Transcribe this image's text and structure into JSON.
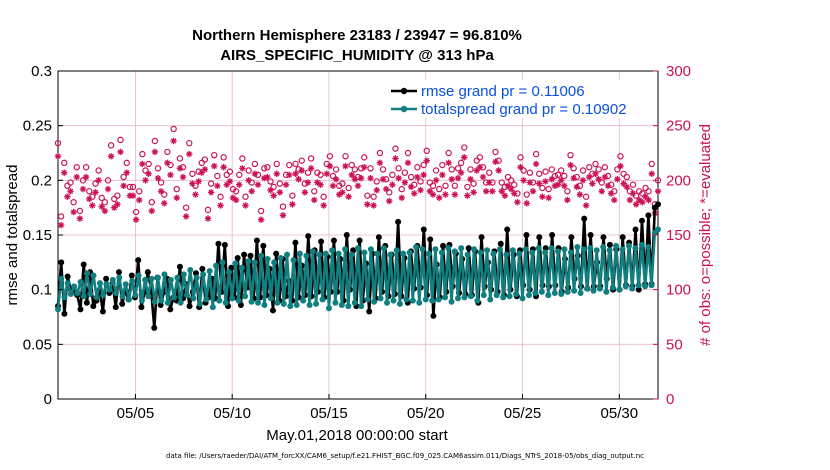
{
  "chart_data": {
    "type": "line",
    "title": "Northern Hemisphere 23183 / 23947 = 96.810%",
    "subtitle": "AIRS_SPECIFIC_HUMIDITY @ 313 hPa",
    "xlabel": "May.01,2018 00:00:00 start",
    "ylabel_left": "rmse and totalspread",
    "ylabel_right": "# of obs: o=possible; *=evaluated",
    "x_ticks": [
      {
        "day": 5,
        "label": "05/05"
      },
      {
        "day": 10,
        "label": "05/10"
      },
      {
        "day": 15,
        "label": "05/15"
      },
      {
        "day": 20,
        "label": "05/20"
      },
      {
        "day": 25,
        "label": "05/25"
      },
      {
        "day": 30,
        "label": "05/30"
      }
    ],
    "xlim": [
      1.0,
      32.0
    ],
    "ylim_left": [
      0,
      0.3
    ],
    "ylim_right": [
      0,
      300
    ],
    "left_ticks": [
      "0",
      "0.05",
      "0.1",
      "0.15",
      "0.2",
      "0.25",
      "0.3"
    ],
    "right_ticks": [
      "0",
      "50",
      "100",
      "150",
      "200",
      "250",
      "300"
    ],
    "grid": true,
    "legend_position": "top-right",
    "footnote": "data file: /Users/raeder/DAI/ATM_forcXX/CAM6_setup/f.e21.FHIST_BGC.f09_025.CAM6assim.011/Diags_NTrS_2018-05/obs_diag_output.nc",
    "colors": {
      "rmse": "#000000",
      "spread": "#0f7f7f",
      "obs": "#cc1155",
      "legend_text": "#0a50e0"
    },
    "series": [
      {
        "name": "rmse grand pr = 0.11006",
        "axis": "left",
        "marker": "circle",
        "values": [
          0.085,
          0.125,
          0.078,
          0.112,
          0.1,
          0.098,
          0.095,
          0.082,
          0.123,
          0.088,
          0.116,
          0.085,
          0.09,
          0.1,
          0.08,
          0.11,
          0.097,
          0.106,
          0.084,
          0.116,
          0.087,
          0.099,
          0.091,
          0.113,
          0.093,
          0.127,
          0.084,
          0.098,
          0.116,
          0.101,
          0.065,
          0.111,
          0.086,
          0.098,
          0.11,
          0.082,
          0.093,
          0.09,
          0.121,
          0.092,
          0.105,
          0.085,
          0.098,
          0.115,
          0.084,
          0.119,
          0.088,
          0.093,
          0.11,
          0.092,
          0.142,
          0.098,
          0.141,
          0.085,
          0.12,
          0.093,
          0.129,
          0.086,
          0.132,
          0.102,
          0.131,
          0.092,
          0.145,
          0.093,
          0.14,
          0.095,
          0.119,
          0.081,
          0.133,
          0.09,
          0.128,
          0.094,
          0.108,
          0.09,
          0.143,
          0.093,
          0.122,
          0.095,
          0.149,
          0.094,
          0.136,
          0.098,
          0.144,
          0.093,
          0.13,
          0.098,
          0.145,
          0.098,
          0.128,
          0.09,
          0.15,
          0.1,
          0.136,
          0.085,
          0.145,
          0.09,
          0.124,
          0.08,
          0.133,
          0.092,
          0.148,
          0.098,
          0.14,
          0.094,
          0.132,
          0.096,
          0.162,
          0.094,
          0.129,
          0.088,
          0.135,
          0.101,
          0.14,
          0.102,
          0.155,
          0.095,
          0.146,
          0.076,
          0.123,
          0.093,
          0.14,
          0.098,
          0.141,
          0.103,
          0.133,
          0.097,
          0.128,
          0.096,
          0.138,
          0.095,
          0.135,
          0.088,
          0.148,
          0.103,
          0.125,
          0.1,
          0.135,
          0.098,
          0.142,
          0.095,
          0.155,
          0.1,
          0.132,
          0.094,
          0.136,
          0.104,
          0.15,
          0.1,
          0.137,
          0.094,
          0.148,
          0.104,
          0.138,
          0.103,
          0.15,
          0.104,
          0.138,
          0.098,
          0.128,
          0.102,
          0.148,
          0.11,
          0.131,
          0.103,
          0.165,
          0.101,
          0.15,
          0.103,
          0.125,
          0.103,
          0.148,
          0.11,
          0.141,
          0.1,
          0.137,
          0.1,
          0.148,
          0.104,
          0.143,
          0.103,
          0.155,
          0.1,
          0.163,
          0.105,
          0.168,
          0.105,
          0.175,
          0.178
        ]
      },
      {
        "name": "totalspread grand pr = 0.10902",
        "axis": "left",
        "marker": "circle",
        "values": [
          0.082,
          0.11,
          0.093,
          0.106,
          0.096,
          0.103,
          0.097,
          0.107,
          0.094,
          0.115,
          0.096,
          0.113,
          0.093,
          0.106,
          0.095,
          0.105,
          0.1,
          0.109,
          0.097,
          0.111,
          0.094,
          0.105,
          0.091,
          0.108,
          0.095,
          0.113,
          0.09,
          0.109,
          0.094,
          0.11,
          0.089,
          0.111,
          0.09,
          0.114,
          0.088,
          0.109,
          0.093,
          0.111,
          0.088,
          0.114,
          0.095,
          0.118,
          0.092,
          0.111,
          0.087,
          0.114,
          0.091,
          0.117,
          0.084,
          0.122,
          0.09,
          0.125,
          0.088,
          0.116,
          0.092,
          0.124,
          0.09,
          0.12,
          0.094,
          0.126,
          0.089,
          0.125,
          0.088,
          0.131,
          0.086,
          0.128,
          0.092,
          0.125,
          0.088,
          0.129,
          0.087,
          0.132,
          0.085,
          0.127,
          0.086,
          0.133,
          0.09,
          0.131,
          0.086,
          0.135,
          0.087,
          0.132,
          0.091,
          0.133,
          0.083,
          0.136,
          0.088,
          0.133,
          0.086,
          0.137,
          0.085,
          0.132,
          0.088,
          0.138,
          0.085,
          0.134,
          0.091,
          0.137,
          0.089,
          0.133,
          0.092,
          0.138,
          0.088,
          0.132,
          0.09,
          0.136,
          0.087,
          0.133,
          0.091,
          0.134,
          0.09,
          0.139,
          0.088,
          0.137,
          0.091,
          0.133,
          0.09,
          0.137,
          0.091,
          0.134,
          0.093,
          0.138,
          0.089,
          0.135,
          0.092,
          0.138,
          0.093,
          0.132,
          0.094,
          0.137,
          0.09,
          0.134,
          0.095,
          0.136,
          0.091,
          0.133,
          0.095,
          0.137,
          0.093,
          0.132,
          0.094,
          0.136,
          0.096,
          0.133,
          0.092,
          0.137,
          0.095,
          0.134,
          0.097,
          0.138,
          0.098,
          0.134,
          0.095,
          0.138,
          0.097,
          0.135,
          0.096,
          0.137,
          0.098,
          0.134,
          0.099,
          0.139,
          0.097,
          0.137,
          0.101,
          0.138,
          0.099,
          0.136,
          0.101,
          0.139,
          0.098,
          0.136,
          0.102,
          0.14,
          0.1,
          0.137,
          0.103,
          0.14,
          0.101,
          0.138,
          0.104,
          0.141,
          0.103,
          0.139,
          0.104,
          0.152,
          0.155
        ]
      },
      {
        "name": "possible",
        "axis": "right",
        "marker": "o",
        "values": [
          234,
          167,
          216,
          195,
          198,
          180,
          212,
          172,
          200,
          212,
          190,
          185,
          197,
          209,
          184,
          180,
          200,
          232,
          183,
          186,
          237,
          203,
          216,
          194,
          194,
          171,
          190,
          224,
          209,
          215,
          180,
          236,
          211,
          198,
          187,
          226,
          214,
          247,
          192,
          220,
          212,
          175,
          234,
          206,
          195,
          208,
          216,
          219,
          173,
          197,
          223,
          204,
          185,
          221,
          205,
          208,
          192,
          190,
          205,
          220,
          185,
          209,
          198,
          215,
          205,
          172,
          211,
          212,
          199,
          194,
          215,
          197,
          176,
          205,
          214,
          186,
          215,
          210,
          218,
          197,
          207,
          220,
          190,
          207,
          205,
          185,
          215,
          222,
          204,
          210,
          195,
          197,
          222,
          193,
          214,
          210,
          203,
          211,
          221,
          186,
          211,
          185,
          199,
          225,
          210,
          201,
          189,
          205,
          229,
          211,
          192,
          207,
          225,
          203,
          196,
          212,
          199,
          214,
          227,
          198,
          195,
          209,
          192,
          214,
          195,
          225,
          210,
          195,
          211,
          216,
          230,
          194,
          210,
          197,
          218,
          221,
          212,
          198,
          207,
          198,
          226,
          218,
          198,
          194,
          203,
          200,
          196,
          188,
          221,
          209,
          187,
          207,
          198,
          224,
          206,
          193,
          208,
          192,
          210,
          204,
          205,
          209,
          204,
          190,
          223,
          211,
          203,
          195,
          209,
          185,
          212,
          206,
          215,
          210,
          198,
          212,
          204,
          196,
          190,
          210,
          222,
          206,
          203,
          190,
          196,
          186,
          190,
          188,
          193,
          190,
          215,
          178,
          200
        ]
      },
      {
        "name": "evaluated",
        "axis": "right",
        "marker": "*",
        "values": [
          222,
          159,
          207,
          185,
          190,
          171,
          203,
          165,
          192,
          203,
          183,
          177,
          189,
          200,
          176,
          172,
          192,
          222,
          175,
          178,
          226,
          195,
          207,
          186,
          186,
          164,
          182,
          215,
          200,
          206,
          172,
          226,
          202,
          190,
          179,
          216,
          205,
          236,
          184,
          211,
          203,
          167,
          224,
          197,
          187,
          199,
          207,
          210,
          165,
          189,
          213,
          195,
          177,
          212,
          196,
          199,
          184,
          182,
          196,
          211,
          177,
          200,
          190,
          206,
          196,
          164,
          202,
          203,
          191,
          186,
          206,
          189,
          168,
          196,
          205,
          178,
          206,
          201,
          209,
          189,
          198,
          211,
          182,
          198,
          196,
          177,
          206,
          213,
          195,
          201,
          187,
          189,
          213,
          185,
          205,
          201,
          195,
          202,
          212,
          178,
          202,
          177,
          191,
          216,
          201,
          192,
          181,
          196,
          220,
          202,
          184,
          198,
          216,
          194,
          188,
          203,
          191,
          205,
          218,
          190,
          187,
          200,
          184,
          205,
          187,
          216,
          201,
          187,
          202,
          207,
          221,
          186,
          201,
          189,
          209,
          212,
          203,
          190,
          198,
          190,
          217,
          209,
          190,
          186,
          195,
          192,
          188,
          180,
          212,
          200,
          179,
          198,
          190,
          215,
          197,
          185,
          199,
          184,
          201,
          195,
          196,
          200,
          195,
          182,
          214,
          202,
          194,
          187,
          200,
          177,
          203,
          197,
          206,
          201,
          190,
          203,
          195,
          188,
          182,
          201,
          213,
          197,
          194,
          182,
          188,
          178,
          182,
          180,
          185,
          182,
          206,
          170,
          190
        ]
      }
    ]
  }
}
